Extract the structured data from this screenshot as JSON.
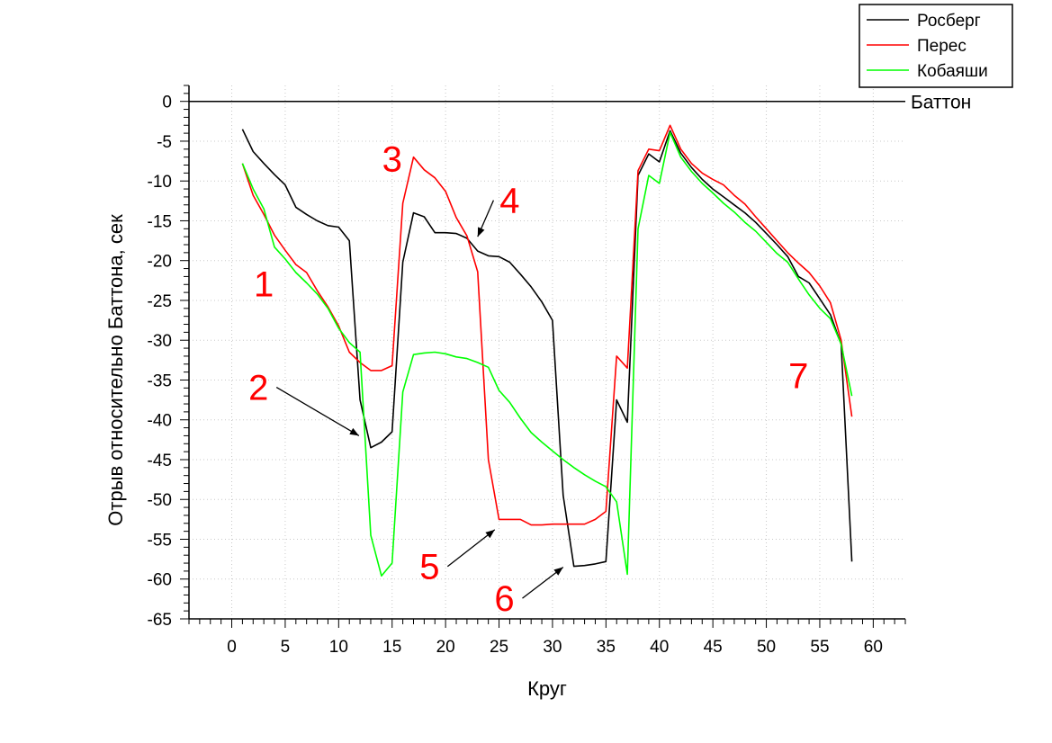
{
  "chart_data": {
    "type": "line",
    "title": "",
    "xlabel": "Круг",
    "ylabel": "Отрыв относительно Баттона, сек",
    "xlim": [
      -4,
      63
    ],
    "ylim": [
      -65,
      2
    ],
    "xticks": [
      0,
      5,
      10,
      15,
      20,
      25,
      30,
      35,
      40,
      45,
      50,
      55,
      60
    ],
    "yticks": [
      0,
      -5,
      -10,
      -15,
      -20,
      -25,
      -30,
      -35,
      -40,
      -45,
      -50,
      -55,
      -60,
      -65
    ],
    "grid": true,
    "legend_position": "top-right",
    "reference_line": {
      "name": "Баттон",
      "y": 0,
      "color": "#000000"
    },
    "series": [
      {
        "name": "Росберг",
        "color": "#000000",
        "x": [
          1,
          2,
          3,
          4,
          5,
          6,
          7,
          8,
          9,
          10,
          11,
          12,
          13,
          14,
          15,
          16,
          17,
          18,
          19,
          20,
          21,
          22,
          23,
          24,
          25,
          26,
          27,
          28,
          29,
          30,
          31,
          32,
          33,
          34,
          35,
          36,
          37,
          38,
          39,
          40,
          41,
          42,
          43,
          44,
          45,
          46,
          47,
          48,
          49,
          50,
          51,
          52,
          53,
          54,
          55,
          56,
          57,
          58
        ],
        "y": [
          -3.5,
          -6.3,
          -7.8,
          -9.2,
          -10.5,
          -13.3,
          -14.2,
          -15.0,
          -15.6,
          -15.8,
          -17.5,
          -37.5,
          -43.5,
          -42.8,
          -41.5,
          -20.2,
          -14.0,
          -14.5,
          -16.5,
          -16.5,
          -16.6,
          -17.2,
          -18.8,
          -19.4,
          -19.5,
          -20.2,
          -21.7,
          -23.3,
          -25.2,
          -27.5,
          -49.5,
          -58.4,
          -58.3,
          -58.1,
          -57.8,
          -37.5,
          -40.3,
          -9.3,
          -6.6,
          -7.6,
          -3.7,
          -6.5,
          -8.3,
          -9.8,
          -11.0,
          -12.0,
          -13.0,
          -14.0,
          -15.2,
          -16.6,
          -18.0,
          -19.5,
          -22.0,
          -22.8,
          -24.8,
          -26.8,
          -30.5,
          -57.8
        ]
      },
      {
        "name": "Перес",
        "color": "#ff0000",
        "x": [
          1,
          2,
          3,
          4,
          5,
          6,
          7,
          8,
          9,
          10,
          11,
          12,
          13,
          14,
          15,
          16,
          17,
          18,
          19,
          20,
          21,
          22,
          23,
          24,
          25,
          26,
          27,
          28,
          29,
          30,
          31,
          32,
          33,
          34,
          35,
          36,
          37,
          38,
          39,
          40,
          41,
          42,
          43,
          44,
          45,
          46,
          47,
          48,
          49,
          50,
          51,
          52,
          53,
          54,
          55,
          56,
          57,
          58
        ],
        "y": [
          -7.8,
          -11.8,
          -14.2,
          -16.8,
          -18.7,
          -20.5,
          -21.5,
          -23.8,
          -25.8,
          -28.2,
          -31.5,
          -32.8,
          -33.8,
          -33.8,
          -33.2,
          -12.8,
          -7.0,
          -8.6,
          -9.6,
          -11.3,
          -14.6,
          -16.9,
          -21.4,
          -45.0,
          -52.5,
          -52.5,
          -52.5,
          -53.2,
          -53.2,
          -53.1,
          -53.1,
          -53.1,
          -53.1,
          -52.5,
          -51.5,
          -32.0,
          -33.5,
          -8.7,
          -6.0,
          -6.2,
          -3.0,
          -6.0,
          -7.8,
          -9.0,
          -9.8,
          -10.5,
          -11.8,
          -12.9,
          -14.5,
          -16.0,
          -17.5,
          -19.0,
          -20.3,
          -21.5,
          -23.2,
          -25.3,
          -30.0,
          -39.6
        ]
      },
      {
        "name": "Кобаяши",
        "color": "#00ff00",
        "x": [
          1,
          2,
          3,
          4,
          5,
          6,
          7,
          8,
          9,
          10,
          11,
          12,
          13,
          14,
          15,
          16,
          17,
          18,
          19,
          20,
          21,
          22,
          23,
          24,
          25,
          26,
          27,
          28,
          29,
          30,
          31,
          32,
          33,
          34,
          35,
          36,
          37,
          38,
          39,
          40,
          41,
          42,
          43,
          44,
          45,
          46,
          47,
          48,
          49,
          50,
          51,
          52,
          53,
          54,
          55,
          56,
          57,
          58
        ],
        "y": [
          -7.8,
          -11.0,
          -13.5,
          -18.3,
          -19.8,
          -21.5,
          -22.8,
          -24.2,
          -26.0,
          -28.5,
          -30.3,
          -31.5,
          -54.5,
          -59.6,
          -58.0,
          -36.5,
          -31.8,
          -31.6,
          -31.5,
          -31.7,
          -32.1,
          -32.3,
          -32.8,
          -33.4,
          -36.3,
          -37.8,
          -39.8,
          -41.6,
          -42.8,
          -43.9,
          -45.0,
          -46.0,
          -46.9,
          -47.7,
          -48.4,
          -50.3,
          -59.4,
          -16.0,
          -9.3,
          -10.3,
          -3.9,
          -7.0,
          -8.8,
          -10.3,
          -11.5,
          -12.8,
          -13.9,
          -15.2,
          -16.3,
          -17.7,
          -19.1,
          -20.2,
          -22.3,
          -24.3,
          -26.0,
          -27.3,
          -30.5,
          -37.0
        ]
      }
    ],
    "annotations": [
      {
        "label": "1",
        "x": 3,
        "y": -24.5,
        "arrow_to": null
      },
      {
        "label": "2",
        "x": 2.5,
        "y": -37.5,
        "arrow_to": {
          "x": 11.9,
          "y": -42.0
        }
      },
      {
        "label": "3",
        "x": 15,
        "y": -8.8,
        "arrow_to": null
      },
      {
        "label": "4",
        "x": 26,
        "y": -14.0,
        "arrow_to": {
          "x": 23.0,
          "y": -17.0
        }
      },
      {
        "label": "5",
        "x": 18.5,
        "y": -60.0,
        "arrow_to": {
          "x": 24.6,
          "y": -53.8
        }
      },
      {
        "label": "6",
        "x": 25.5,
        "y": -64.0,
        "arrow_to": {
          "x": 31.0,
          "y": -58.5
        }
      },
      {
        "label": "7",
        "x": 53,
        "y": -36.0,
        "arrow_to": null
      }
    ]
  }
}
